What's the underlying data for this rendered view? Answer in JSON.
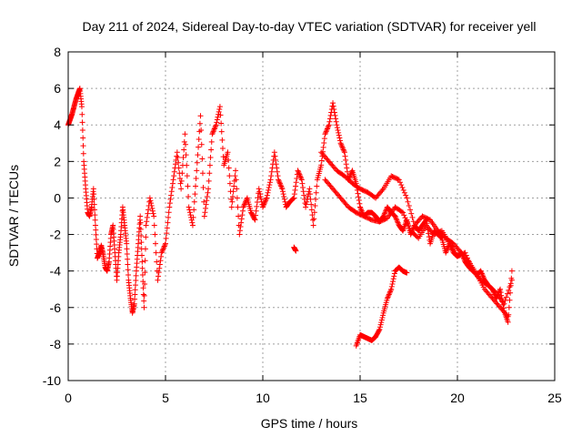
{
  "chart_data": {
    "type": "scatter",
    "title": "Day 211 of 2024, Sidereal Day-to-day VTEC variation (SDTVAR) for receiver yell",
    "xlabel": "GPS time / hours",
    "ylabel": "SDTVAR / TECUs",
    "xlim": [
      0,
      25
    ],
    "ylim": [
      -10,
      8
    ],
    "xticks": [
      0,
      5,
      10,
      15,
      20,
      25
    ],
    "yticks": [
      -10,
      -8,
      -6,
      -4,
      -2,
      0,
      2,
      4,
      6,
      8
    ],
    "xtick_labels": [
      "0",
      "5",
      "10",
      "15",
      "20",
      "25"
    ],
    "ytick_labels": [
      "-10",
      "-8",
      "-6",
      "-4",
      "-2",
      "0",
      "2",
      "4",
      "6",
      "8"
    ],
    "grid": true,
    "marker": "plus",
    "color": "#ff0000",
    "series": [
      {
        "name": "receiver yell",
        "x": [
          0.0,
          0.1,
          0.2,
          0.3,
          0.4,
          0.5,
          0.6,
          0.7,
          0.8,
          0.9,
          1.0,
          1.1,
          1.2,
          1.3,
          1.4,
          1.5,
          1.6,
          1.7,
          1.8,
          1.9,
          2.0,
          2.1,
          2.2,
          2.3,
          2.4,
          2.5,
          2.6,
          2.7,
          2.8,
          2.9,
          3.0,
          3.1,
          3.2,
          3.3,
          3.4,
          3.5,
          3.6,
          3.7,
          3.8,
          3.9,
          4.0,
          4.2,
          4.4,
          4.6,
          4.8,
          5.0,
          5.2,
          5.4,
          5.6,
          5.8,
          6.0,
          6.2,
          6.4,
          6.6,
          6.8,
          7.0,
          7.2,
          7.4,
          7.6,
          7.8,
          8.0,
          8.2,
          8.4,
          8.6,
          8.8,
          9.0,
          9.2,
          9.4,
          9.6,
          9.8,
          10.0,
          10.2,
          10.4,
          10.6,
          10.8,
          11.0,
          11.2,
          11.4,
          11.6,
          11.8,
          12.0,
          12.2,
          12.4,
          12.6,
          12.8,
          13.0,
          13.2,
          13.4,
          13.6,
          13.8,
          14.0,
          14.2,
          14.4,
          14.6,
          14.8,
          15.0,
          15.2,
          15.4,
          15.6,
          15.8,
          16.0,
          16.2,
          16.4,
          16.6,
          16.8,
          17.0,
          17.2,
          17.4,
          17.6,
          17.8,
          18.0,
          18.2,
          18.4,
          18.6,
          18.8,
          19.0,
          19.2,
          19.4,
          19.6,
          19.8,
          20.0,
          20.2,
          20.4,
          20.6,
          20.8,
          21.0,
          21.2,
          21.4,
          21.6,
          21.8,
          22.0,
          22.2,
          22.4,
          22.6,
          22.8
        ],
        "y": [
          4.0,
          4.3,
          4.6,
          5.0,
          5.4,
          5.7,
          6.0,
          5.0,
          2.0,
          0.5,
          -0.8,
          -1.0,
          -0.5,
          0.5,
          -1.5,
          -3.3,
          -3.0,
          -2.6,
          -3.1,
          -3.8,
          -4.0,
          -3.5,
          -2.0,
          -1.5,
          -3.0,
          -4.5,
          -3.0,
          -2.0,
          -0.5,
          -1.5,
          -2.5,
          -4.5,
          -5.5,
          -6.3,
          -5.8,
          -4.0,
          -2.5,
          -1.0,
          -3.5,
          -6.0,
          -1.5,
          0.0,
          -1.0,
          -4.5,
          -3.0,
          -2.5,
          -0.5,
          1.0,
          2.5,
          0.5,
          3.5,
          -0.5,
          -1.5,
          1.5,
          4.5,
          -1.0,
          0.5,
          3.5,
          4.0,
          5.0,
          1.8,
          2.5,
          -0.5,
          1.5,
          -2.0,
          -0.5,
          0.0,
          -0.8,
          -1.2,
          0.5,
          -0.5,
          0.0,
          1.0,
          2.5,
          1.0,
          0.5,
          -0.5,
          -0.2,
          0.0,
          1.5,
          1.0,
          -0.5,
          0.5,
          -1.5,
          1.0,
          1.8,
          3.5,
          4.0,
          5.2,
          4.0,
          3.0,
          2.5,
          1.0,
          1.5,
          0.8,
          -0.5,
          -1.0,
          -0.8,
          -0.8,
          -1.0,
          -1.3,
          -1.0,
          -0.5,
          -0.8,
          -1.0,
          -1.5,
          -1.8,
          -1.2,
          -2.0,
          -1.5,
          -1.8,
          -1.5,
          -1.2,
          -2.5,
          -1.8,
          -2.0,
          -2.2,
          -3.0,
          -2.5,
          -3.0,
          -3.2,
          -3.0,
          -3.5,
          -3.8,
          -4.0,
          -4.2,
          -4.0,
          -4.5,
          -4.8,
          -5.0,
          -5.5,
          -5.0,
          -6.2,
          -6.8,
          -4.0
        ],
        "branch_a_x": [
          13.0,
          13.4,
          13.8,
          14.2,
          14.6,
          15.0,
          15.4,
          15.8,
          16.2,
          16.6,
          17.0,
          17.4,
          17.8,
          18.2,
          18.6,
          19.0,
          19.4,
          19.8,
          20.2,
          20.6,
          21.0,
          21.4,
          21.8,
          22.2,
          22.6
        ],
        "branch_a_y": [
          2.5,
          2.0,
          1.5,
          1.2,
          0.8,
          0.5,
          0.3,
          0.0,
          0.5,
          1.2,
          1.0,
          0.0,
          -1.5,
          -1.0,
          -1.2,
          -1.8,
          -2.2,
          -2.5,
          -3.0,
          -3.5,
          -4.2,
          -5.0,
          -5.5,
          -6.0,
          -6.5
        ],
        "branch_b_x": [
          13.2,
          13.6,
          14.0,
          14.4,
          14.8,
          15.2,
          15.6,
          16.0,
          16.4,
          16.8,
          17.2,
          17.6,
          18.0,
          18.4,
          18.8,
          19.2,
          19.6,
          20.0,
          20.4,
          20.8,
          21.2,
          21.6,
          22.0,
          22.4,
          22.8
        ],
        "branch_b_y": [
          1.0,
          0.5,
          0.0,
          -0.5,
          -0.8,
          -1.0,
          -1.2,
          -1.3,
          -1.1,
          -0.5,
          -0.8,
          -1.8,
          -2.2,
          -1.5,
          -2.0,
          -1.8,
          -2.5,
          -3.2,
          -3.0,
          -4.0,
          -4.5,
          -4.8,
          -5.2,
          -5.8,
          -4.5
        ],
        "branch_c_x": [
          14.8,
          15.0,
          15.2,
          15.4,
          15.6,
          15.8,
          16.0,
          16.2,
          16.4,
          16.6,
          16.8,
          17.0,
          17.2,
          17.4,
          11.6,
          11.7
        ],
        "branch_c_y": [
          -8.1,
          -7.5,
          -7.6,
          -7.7,
          -7.8,
          -7.6,
          -7.2,
          -6.3,
          -5.5,
          -5.0,
          -4.0,
          -3.8,
          -4.0,
          -4.1,
          -2.7,
          -2.9
        ]
      }
    ]
  }
}
